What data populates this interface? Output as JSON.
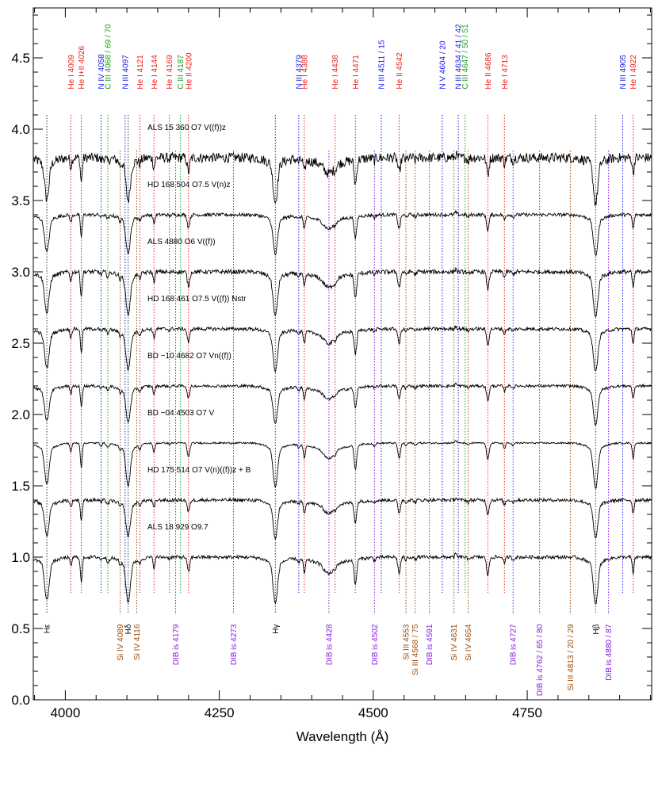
{
  "chart_data": {
    "type": "line",
    "title": "",
    "xlabel": "Wavelength (Å)",
    "ylabel": "",
    "xlim": [
      3948,
      4952
    ],
    "ylim": [
      0.0,
      4.85
    ],
    "x_ticks": [
      4000,
      4250,
      4500,
      4750
    ],
    "y_ticks": [
      "0.0",
      "0.5",
      "1.0",
      "1.5",
      "2.0",
      "2.5",
      "3.0",
      "3.5",
      "4.0",
      "4.5"
    ],
    "series": [
      {
        "name": "ALS 15 360    O7 V((f))z",
        "baseline": 3.8,
        "noise": 0.035,
        "depth": 1.0
      },
      {
        "name": "HD 168 504    O7.5 V(n)z",
        "baseline": 3.4,
        "noise": 0.012,
        "depth": 0.9
      },
      {
        "name": "ALS 4880    O6 V((f))",
        "baseline": 3.0,
        "noise": 0.015,
        "depth": 1.0
      },
      {
        "name": "HD 168 461    O7.5 V((f)) Nstr",
        "baseline": 2.6,
        "noise": 0.012,
        "depth": 0.95
      },
      {
        "name": "BD −10 4682    O7 Vn((f))",
        "baseline": 2.2,
        "noise": 0.01,
        "depth": 0.85
      },
      {
        "name": "BD −04 4503    O7 V",
        "baseline": 1.8,
        "noise": 0.006,
        "depth": 1.0
      },
      {
        "name": "HD 175 514    O7 V(n)((f))z + B",
        "baseline": 1.4,
        "noise": 0.012,
        "depth": 0.85
      },
      {
        "name": "ALS 18 929    O9.7",
        "baseline": 1.0,
        "noise": 0.012,
        "depth": 1.05
      }
    ],
    "top_lines": [
      {
        "label": "He I 4009",
        "wl": 4009,
        "color": "#e8201a"
      },
      {
        "label": "He I+II 4026",
        "wl": 4026,
        "color": "#e8201a"
      },
      {
        "label": "N IV 4058",
        "wl": 4058,
        "color": "#1a1ae8"
      },
      {
        "label": "C III 4068 / 69 / 70",
        "wl": 4069,
        "color": "#1a9e1a"
      },
      {
        "label": "N III 4097",
        "wl": 4097,
        "color": "#1a1ae8"
      },
      {
        "label": "He I 4121",
        "wl": 4121,
        "color": "#e8201a"
      },
      {
        "label": "He I 4144",
        "wl": 4144,
        "color": "#e8201a"
      },
      {
        "label": "He I 4169",
        "wl": 4169,
        "color": "#e8201a"
      },
      {
        "label": "C III 4187",
        "wl": 4187,
        "color": "#1a9e1a"
      },
      {
        "label": "He II 4200",
        "wl": 4200,
        "color": "#e8201a"
      },
      {
        "label": "N III 4379",
        "wl": 4379,
        "color": "#1a1ae8"
      },
      {
        "label": "He I 4388",
        "wl": 4388,
        "color": "#e8201a"
      },
      {
        "label": "He I 4438",
        "wl": 4438,
        "color": "#e8201a"
      },
      {
        "label": "He I 4471",
        "wl": 4471,
        "color": "#e8201a"
      },
      {
        "label": "N III 4511 / 15",
        "wl": 4513,
        "color": "#1a1ae8"
      },
      {
        "label": "He II 4542",
        "wl": 4542,
        "color": "#e8201a"
      },
      {
        "label": "N V 4604 / 20",
        "wl": 4612,
        "color": "#1a1ae8"
      },
      {
        "label": "N III 4634 / 41 / 42",
        "wl": 4638,
        "color": "#1a1ae8"
      },
      {
        "label": "C III 4647 / 50 / 51",
        "wl": 4649,
        "color": "#1a9e1a"
      },
      {
        "label": "He II 4686",
        "wl": 4686,
        "color": "#e8201a"
      },
      {
        "label": "He I 4713",
        "wl": 4713,
        "color": "#e8201a"
      },
      {
        "label": "N III 4905",
        "wl": 4905,
        "color": "#1a1ae8"
      },
      {
        "label": "He I 4922",
        "wl": 4922,
        "color": "#e8201a"
      }
    ],
    "bottom_lines": [
      {
        "label": "Hε",
        "wl": 3970,
        "color": "#000000"
      },
      {
        "label": "Si IV 4089",
        "wl": 4089,
        "color": "#9a4a0a"
      },
      {
        "label": "Hδ",
        "wl": 4102,
        "color": "#000000"
      },
      {
        "label": "Si IV 4116",
        "wl": 4116,
        "color": "#9a4a0a"
      },
      {
        "label": "DIB is 4179",
        "wl": 4179,
        "color": "#8a1ae0"
      },
      {
        "label": "DIB is 4273",
        "wl": 4273,
        "color": "#8a1ae0"
      },
      {
        "label": "Hγ",
        "wl": 4341,
        "color": "#000000"
      },
      {
        "label": "DIB is 4428",
        "wl": 4428,
        "color": "#8a1ae0"
      },
      {
        "label": "DIB is 4502",
        "wl": 4502,
        "color": "#8a1ae0"
      },
      {
        "label": "Si III 4553",
        "wl": 4553,
        "color": "#9a4a0a"
      },
      {
        "label": "Si III 4568 / 75",
        "wl": 4568,
        "color": "#9a4a0a"
      },
      {
        "label": "DIB is 4591",
        "wl": 4591,
        "color": "#8a1ae0"
      },
      {
        "label": "Si IV 4631",
        "wl": 4631,
        "color": "#9a4a0a"
      },
      {
        "label": "Si IV 4654",
        "wl": 4654,
        "color": "#9a4a0a"
      },
      {
        "label": "DIB is 4727",
        "wl": 4727,
        "color": "#8a1ae0"
      },
      {
        "label": "DIB is 4762 / 65 / 80",
        "wl": 4770,
        "color": "#8a1ae0"
      },
      {
        "label": "Si III 4813 / 20 / 29",
        "wl": 4820,
        "color": "#9a4a0a"
      },
      {
        "label": "Hβ",
        "wl": 4861,
        "color": "#000000"
      },
      {
        "label": "DIB is 4880 / 87",
        "wl": 4882,
        "color": "#8a1ae0"
      }
    ],
    "absorption": [
      {
        "wl": 3970,
        "depth": 0.25,
        "width": 3.5
      },
      {
        "wl": 4009,
        "depth": 0.06,
        "width": 1.5
      },
      {
        "wl": 4026,
        "depth": 0.17,
        "width": 1.5
      },
      {
        "wl": 4058,
        "depth": 0.02,
        "width": 1.5
      },
      {
        "wl": 4069,
        "depth": 0.03,
        "width": 2.0
      },
      {
        "wl": 4089,
        "depth": 0.03,
        "width": 1.5
      },
      {
        "wl": 4102,
        "depth": 0.26,
        "width": 3.5
      },
      {
        "wl": 4121,
        "depth": 0.03,
        "width": 1.5
      },
      {
        "wl": 4144,
        "depth": 0.07,
        "width": 1.5
      },
      {
        "wl": 4169,
        "depth": 0.01,
        "width": 1.5
      },
      {
        "wl": 4200,
        "depth": 0.1,
        "width": 2.0
      },
      {
        "wl": 4341,
        "depth": 0.27,
        "width": 3.5
      },
      {
        "wl": 4379,
        "depth": 0.02,
        "width": 1.5
      },
      {
        "wl": 4388,
        "depth": 0.09,
        "width": 1.5
      },
      {
        "wl": 4428,
        "depth": 0.07,
        "width": 8.0
      },
      {
        "wl": 4438,
        "depth": 0.02,
        "width": 1.5
      },
      {
        "wl": 4471,
        "depth": 0.17,
        "width": 2.0
      },
      {
        "wl": 4502,
        "depth": 0.02,
        "width": 1.5
      },
      {
        "wl": 4542,
        "depth": 0.11,
        "width": 2.0
      },
      {
        "wl": 4553,
        "depth": 0.02,
        "width": 1.5
      },
      {
        "wl": 4568,
        "depth": 0.02,
        "width": 1.5
      },
      {
        "wl": 4634,
        "depth": -0.02,
        "width": 1.5
      },
      {
        "wl": 4654,
        "depth": 0.02,
        "width": 1.5
      },
      {
        "wl": 4686,
        "depth": 0.12,
        "width": 2.0
      },
      {
        "wl": 4713,
        "depth": 0.04,
        "width": 1.5
      },
      {
        "wl": 4727,
        "depth": 0.02,
        "width": 1.5
      },
      {
        "wl": 4861,
        "depth": 0.28,
        "width": 3.5
      },
      {
        "wl": 4922,
        "depth": 0.11,
        "width": 1.5
      }
    ]
  }
}
